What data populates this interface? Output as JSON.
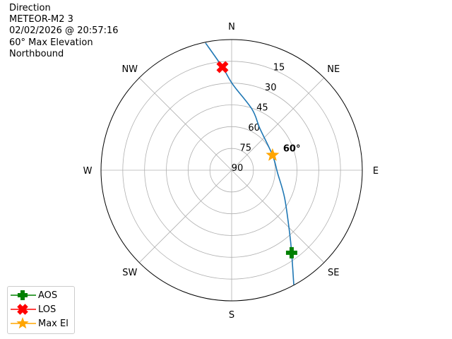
{
  "info": {
    "lines": [
      "Direction",
      "METEOR-M2 3",
      "02/02/2026 @ 20:57:16",
      "60° Max Elevation",
      "Northbound"
    ]
  },
  "chart_data": {
    "type": "polar",
    "compass_labels": [
      "N",
      "NE",
      "E",
      "SE",
      "S",
      "SW",
      "W",
      "NW"
    ],
    "compass_angles": [
      0,
      45,
      90,
      135,
      180,
      225,
      270,
      315
    ],
    "elevation_ticks": [
      15,
      30,
      45,
      60,
      75,
      90
    ],
    "radial_axis": "elevation (90 at center, 0 at edge)",
    "grid": true,
    "track": {
      "color": "#1f77b4",
      "points": [
        {
          "az": 348.4,
          "el": 0.5
        },
        {
          "az": 354.9,
          "el": 18.7
        },
        {
          "az": 0.9,
          "el": 31.1
        },
        {
          "az": 18.6,
          "el": 45.8
        },
        {
          "az": 34.1,
          "el": 55.3
        },
        {
          "az": 69.8,
          "el": 60.0
        },
        {
          "az": 93.5,
          "el": 58.3
        },
        {
          "az": 117.5,
          "el": 48.9
        },
        {
          "az": 137.3,
          "el": 31.1
        },
        {
          "az": 144.0,
          "el": 19.7
        },
        {
          "az": 151.5,
          "el": 0.3
        }
      ]
    },
    "markers": [
      {
        "name": "AOS",
        "az": 144.0,
        "el": 19.7,
        "color": "#008000",
        "shape": "plus"
      },
      {
        "name": "LOS",
        "az": 354.9,
        "el": 18.7,
        "color": "#ff0000",
        "shape": "x"
      },
      {
        "name": "Max El",
        "az": 69.8,
        "el": 60.0,
        "color": "#ffa500",
        "shape": "star"
      }
    ],
    "max_el_annotation": "60°",
    "legend": {
      "placement": "lower-left",
      "entries": [
        "AOS",
        "LOS",
        "Max El"
      ]
    }
  }
}
